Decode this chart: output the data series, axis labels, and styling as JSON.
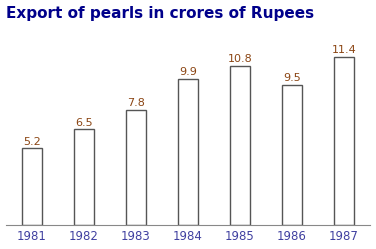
{
  "title": "Export of pearls in crores of Rupees",
  "years": [
    "1981",
    "1982",
    "1983",
    "1984",
    "1985",
    "1986",
    "1987"
  ],
  "values": [
    5.2,
    6.5,
    7.8,
    9.9,
    10.8,
    9.5,
    11.4
  ],
  "bar_color": "#ffffff",
  "bar_edgecolor": "#555555",
  "label_color": "#8B4513",
  "tick_color": "#4040a0",
  "title_color": "#00008B",
  "title_fontsize": 11,
  "label_fontsize": 8,
  "tick_fontsize": 8.5,
  "bar_width": 0.38,
  "ylim": [
    0,
    13.5
  ],
  "background_color": "#ffffff"
}
